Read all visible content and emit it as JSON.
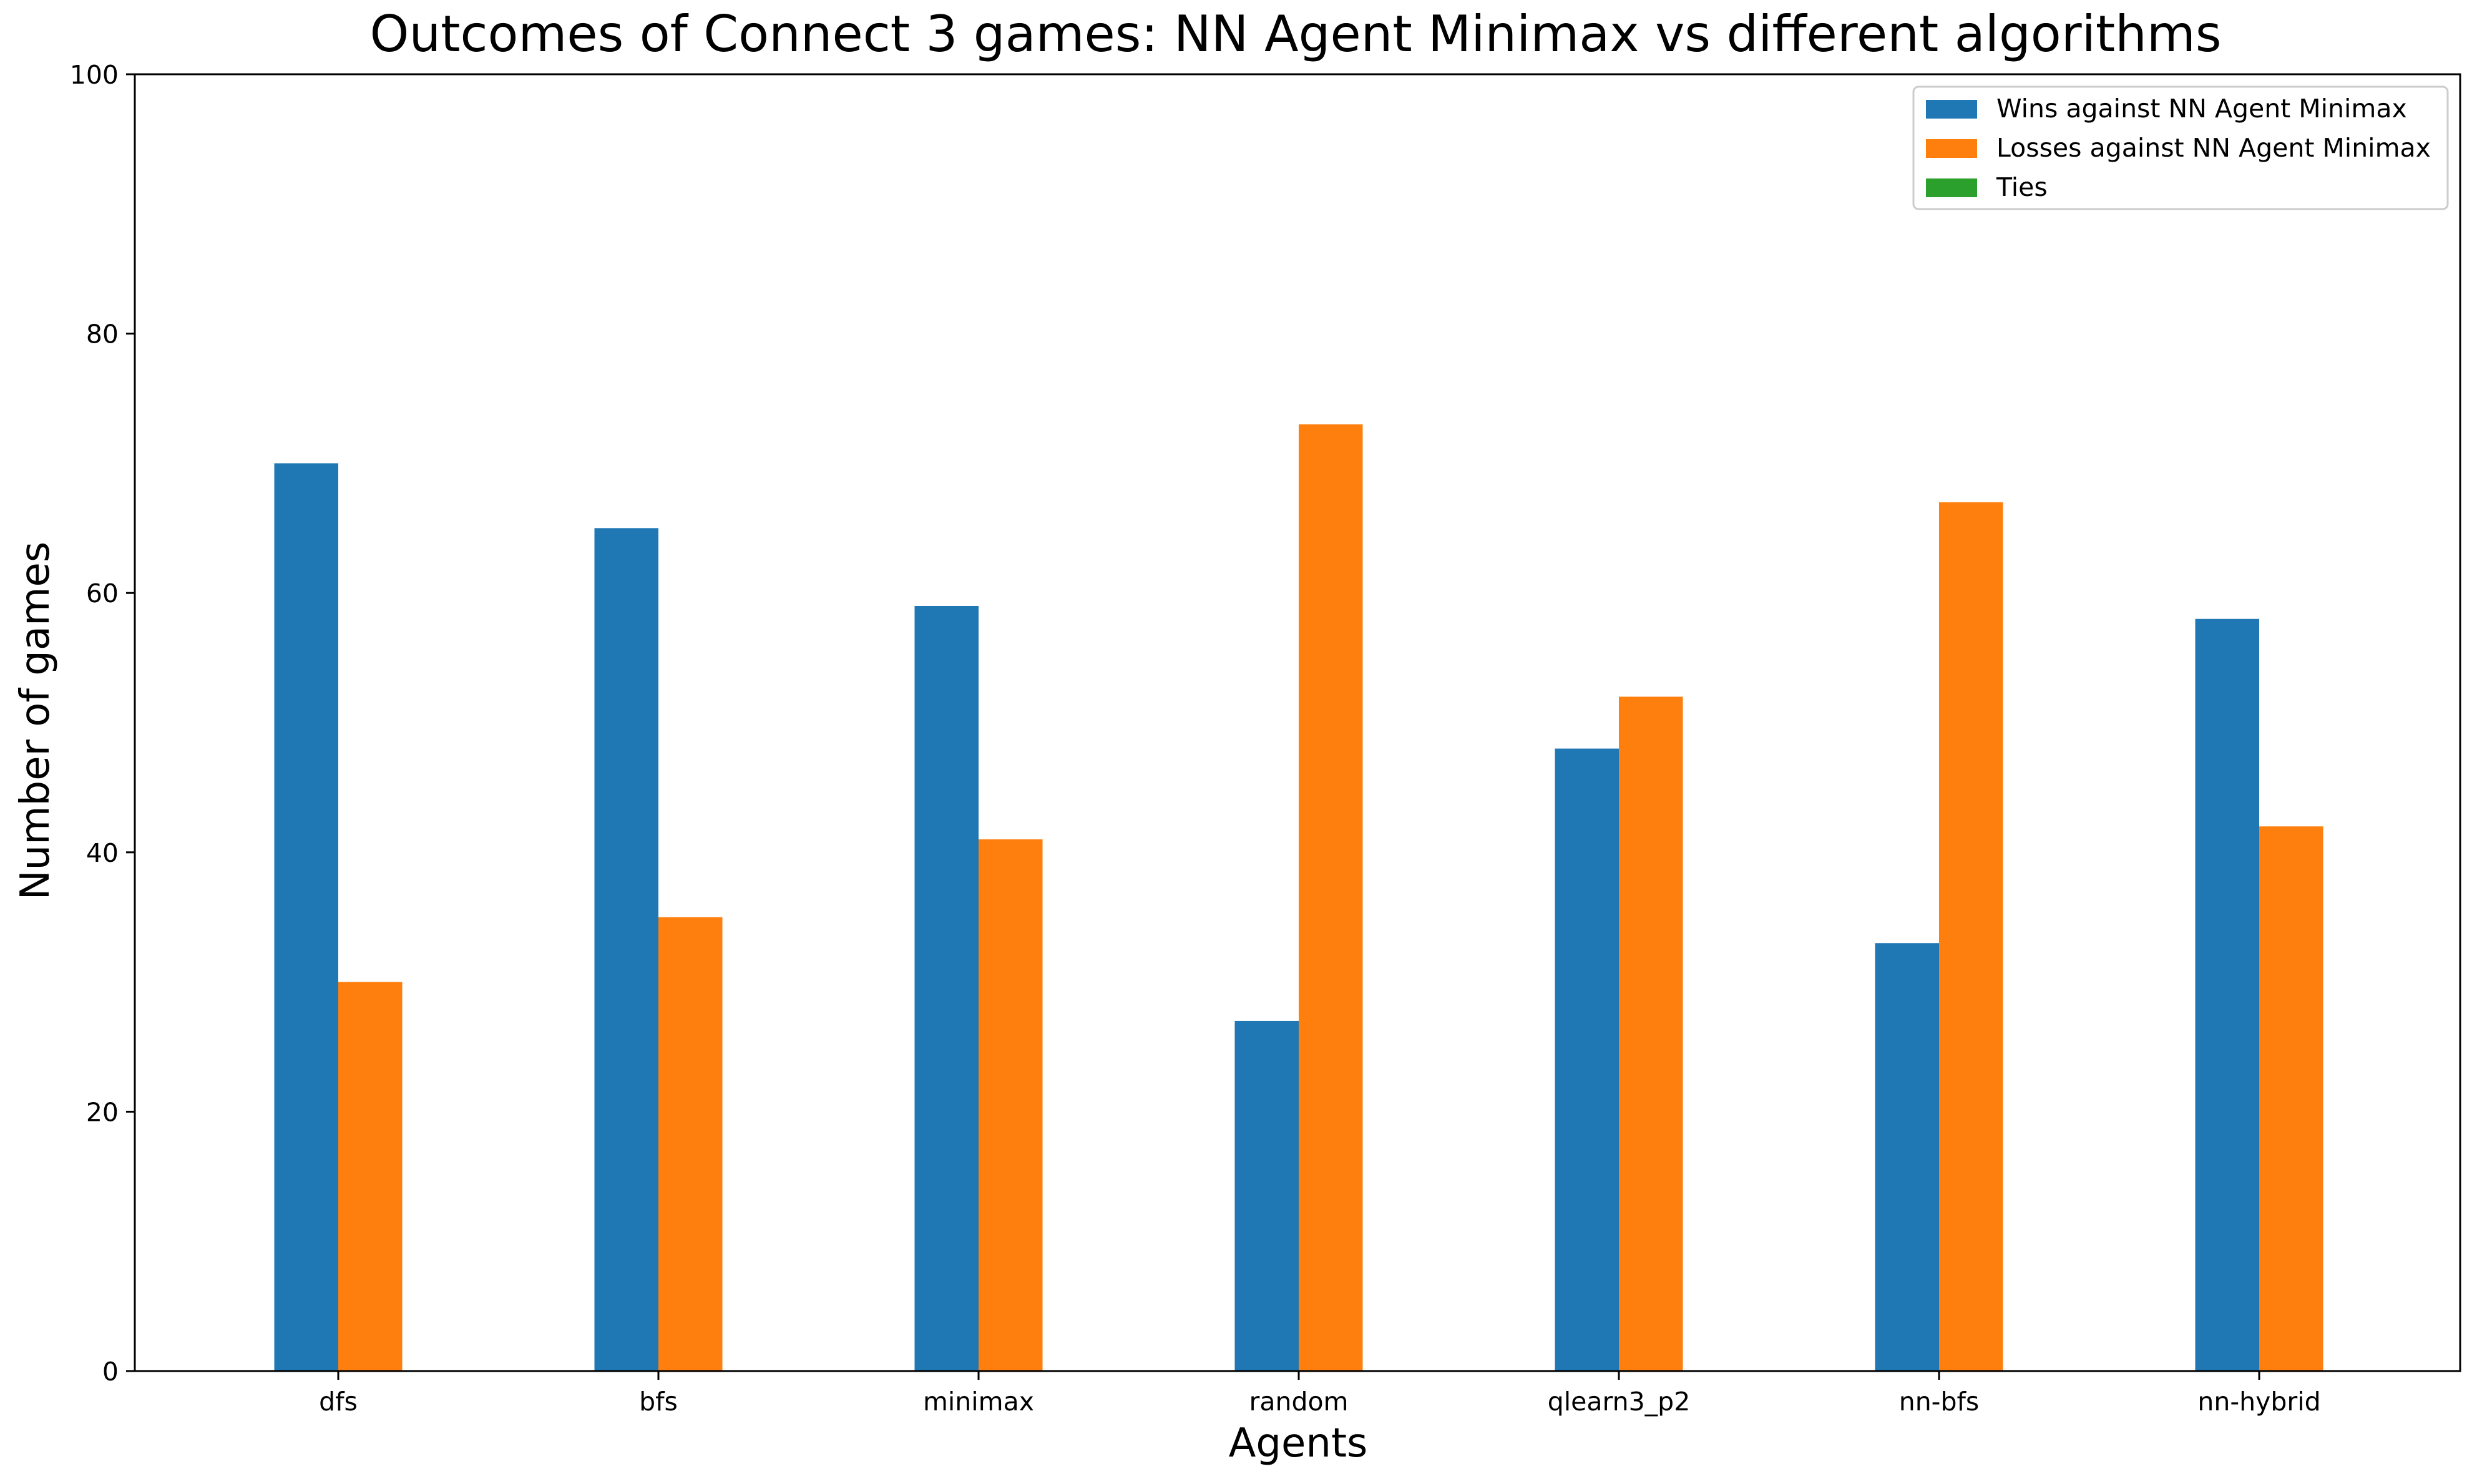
{
  "chart_data": {
    "type": "bar",
    "title": "Outcomes of Connect 3 games: NN Agent Minimax vs different algorithms",
    "xlabel": "Agents",
    "ylabel": "Number of games",
    "categories": [
      "dfs",
      "bfs",
      "minimax",
      "random",
      "qlearn3_p2",
      "nn-bfs",
      "nn-hybrid"
    ],
    "series": [
      {
        "name": "Wins against NN Agent Minimax",
        "color": "#1f77b4",
        "values": [
          70,
          65,
          59,
          27,
          48,
          33,
          58
        ]
      },
      {
        "name": "Losses against NN Agent Minimax",
        "color": "#ff7f0e",
        "values": [
          30,
          35,
          41,
          73,
          52,
          67,
          42
        ]
      },
      {
        "name": "Ties",
        "color": "#2ca02c",
        "values": [
          0,
          0,
          0,
          0,
          0,
          0,
          0
        ]
      }
    ],
    "ylim": [
      0,
      100
    ],
    "yticks": [
      0,
      20,
      40,
      60,
      80,
      100
    ],
    "grid": false,
    "legend_position": "top-right"
  }
}
